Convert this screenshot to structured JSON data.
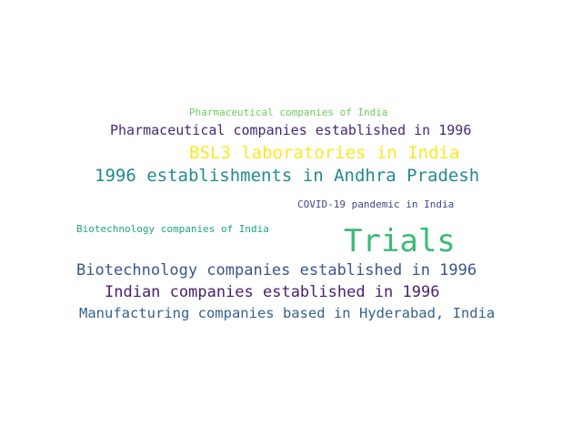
{
  "words": [
    {
      "text": "Pharmaceutical companies of India",
      "color": "#6ccd5a"
    },
    {
      "text": "Pharmaceutical companies established in 1996",
      "color": "#482677"
    },
    {
      "text": "BSL3 laboratories in India",
      "color": "#fde725"
    },
    {
      "text": "1996 establishments in Andhra Pradesh",
      "color": "#238a8d"
    },
    {
      "text": "COVID-19 pandemic in India",
      "color": "#3f4788"
    },
    {
      "text": "Biotechnology companies of India",
      "color": "#20a386"
    },
    {
      "text": "Trials",
      "color": "#3bbb75"
    },
    {
      "text": "Biotechnology companies established in 1996",
      "color": "#39558c"
    },
    {
      "text": "Indian companies established in 1996",
      "color": "#481f70"
    },
    {
      "text": "Manufacturing companies based in Hyderabad, India",
      "color": "#33638d"
    }
  ]
}
